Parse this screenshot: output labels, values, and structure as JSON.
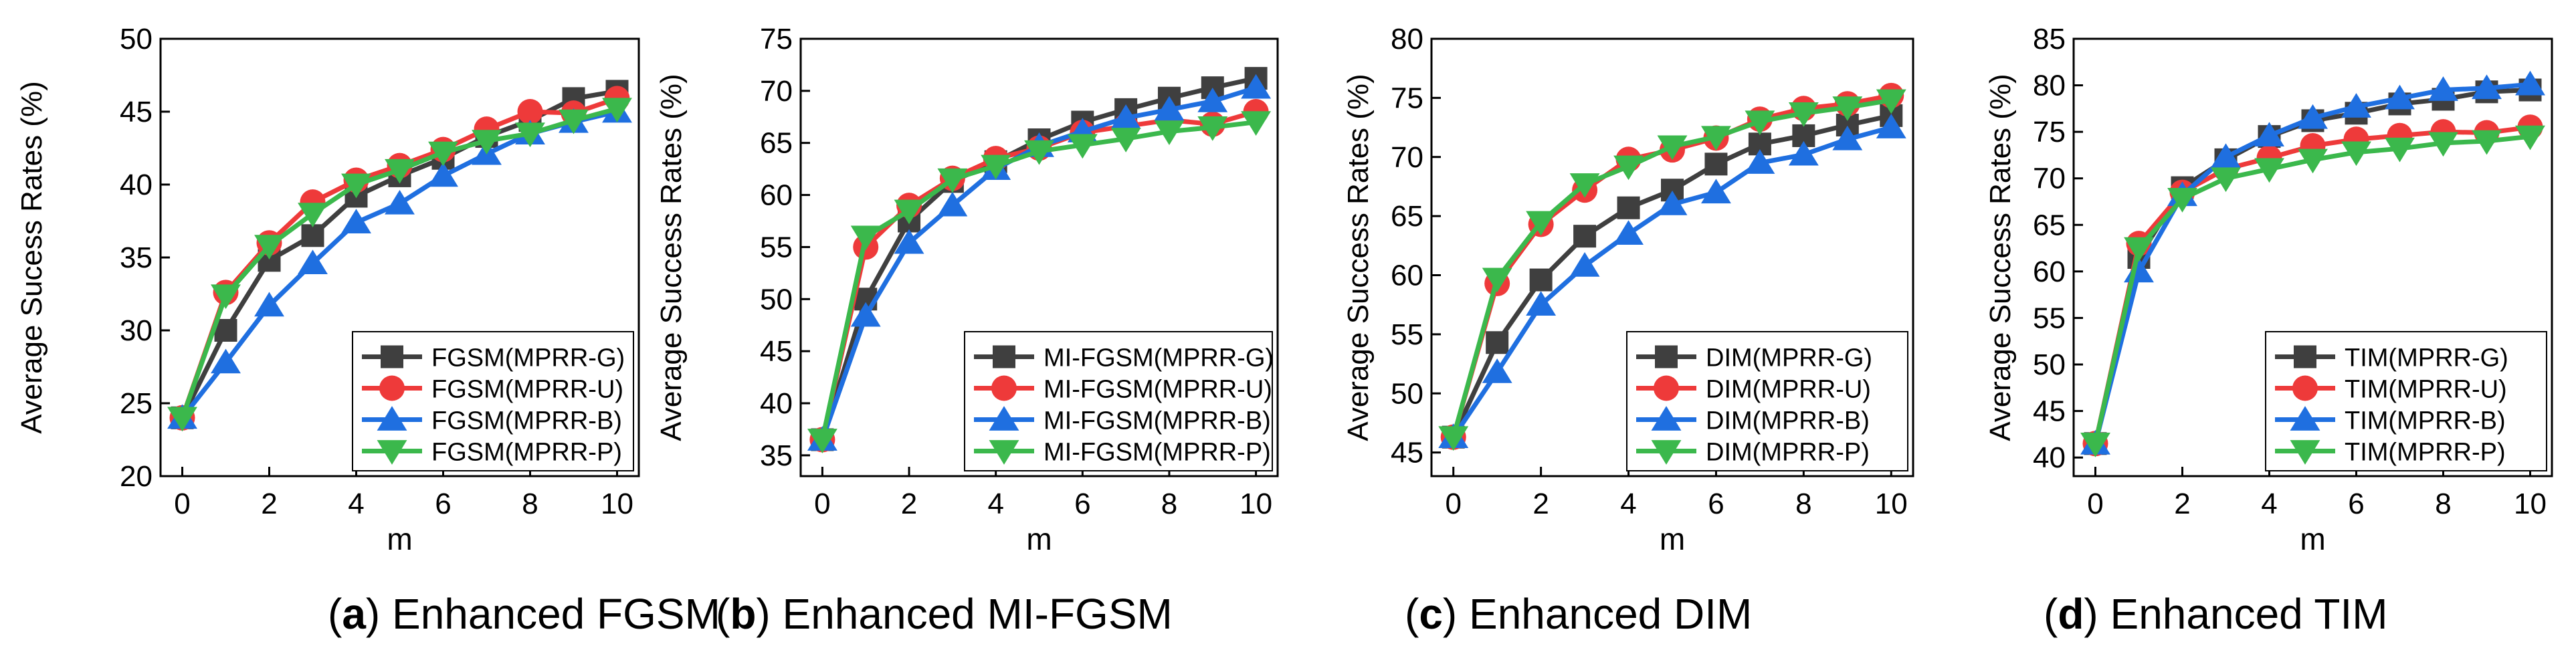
{
  "colors": {
    "G": "#3f3f3f",
    "U": "#ee3a3a",
    "B": "#1f6fe0",
    "P": "#3bb84c",
    "axis": "#000000",
    "background": "#ffffff"
  },
  "chart_data": [
    {
      "type": "line",
      "panel": "a",
      "caption_letter": "(a)",
      "caption_text": "Enhanced FGSM",
      "xlabel": "m",
      "ylabel": "Average Sucess Rates (%)",
      "xlim": [
        -0.5,
        10.5
      ],
      "ylim": [
        20,
        50
      ],
      "xticks": [
        0,
        2,
        4,
        6,
        8,
        10
      ],
      "yticks": [
        20,
        25,
        30,
        35,
        40,
        45,
        50
      ],
      "legend_position": "bottom-right",
      "x": [
        0,
        1,
        2,
        3,
        4,
        5,
        6,
        7,
        8,
        9,
        10
      ],
      "series": [
        {
          "key": "G",
          "name": "FGSM(MPRR-G)",
          "marker": "square",
          "values": [
            24.0,
            30.0,
            34.8,
            36.5,
            39.2,
            40.6,
            41.8,
            43.3,
            44.4,
            45.9,
            46.4
          ]
        },
        {
          "key": "U",
          "name": "FGSM(MPRR-U)",
          "marker": "circle",
          "values": [
            24.0,
            32.6,
            36.0,
            38.8,
            40.3,
            41.3,
            42.4,
            43.8,
            45.0,
            44.9,
            45.9
          ]
        },
        {
          "key": "B",
          "name": "FGSM(MPRR-B)",
          "marker": "triangle-up",
          "values": [
            24.0,
            27.8,
            31.7,
            34.6,
            37.4,
            38.7,
            40.6,
            42.1,
            43.5,
            44.3,
            45.0
          ]
        },
        {
          "key": "P",
          "name": "FGSM(MPRR-P)",
          "marker": "triangle-down",
          "values": [
            24.0,
            32.4,
            35.8,
            38.0,
            40.0,
            41.0,
            42.2,
            43.0,
            43.5,
            44.4,
            45.2
          ]
        }
      ]
    },
    {
      "type": "line",
      "panel": "b",
      "caption_letter": "(b)",
      "caption_text": "Enhanced MI-FGSM",
      "xlabel": "m",
      "ylabel": "Average Success Rates (%)",
      "xlim": [
        -0.5,
        10.5
      ],
      "ylim": [
        33,
        75
      ],
      "xticks": [
        0,
        2,
        4,
        6,
        8,
        10
      ],
      "yticks": [
        35,
        40,
        45,
        50,
        55,
        60,
        65,
        70,
        75
      ],
      "legend_position": "bottom-right",
      "x": [
        0,
        1,
        2,
        3,
        4,
        5,
        6,
        7,
        8,
        9,
        10
      ],
      "series": [
        {
          "key": "G",
          "name": "MI-FGSM(MPRR-G)",
          "marker": "square",
          "values": [
            36.5,
            50.0,
            57.5,
            61.3,
            63.2,
            65.3,
            67.0,
            68.2,
            69.3,
            70.3,
            71.2
          ]
        },
        {
          "key": "U",
          "name": "MI-FGSM(MPRR-U)",
          "marker": "circle",
          "values": [
            36.5,
            55.0,
            59.0,
            61.6,
            63.5,
            64.5,
            66.0,
            66.6,
            67.2,
            66.8,
            68.0
          ]
        },
        {
          "key": "B",
          "name": "MI-FGSM(MPRR-B)",
          "marker": "triangle-up",
          "values": [
            36.5,
            48.4,
            55.4,
            59.0,
            62.5,
            64.7,
            66.1,
            67.4,
            68.2,
            69.0,
            70.3
          ]
        },
        {
          "key": "P",
          "name": "MI-FGSM(MPRR-P)",
          "marker": "triangle-down",
          "values": [
            36.5,
            56.0,
            58.5,
            61.5,
            62.8,
            64.2,
            64.8,
            65.4,
            66.1,
            66.5,
            67.0
          ]
        }
      ]
    },
    {
      "type": "line",
      "panel": "c",
      "caption_letter": "(c)",
      "caption_text": "Enhanced DIM",
      "xlabel": "m",
      "ylabel": "Average Success Rates (%)",
      "xlim": [
        -0.5,
        10.5
      ],
      "ylim": [
        43,
        80
      ],
      "xticks": [
        0,
        2,
        4,
        6,
        8,
        10
      ],
      "yticks": [
        45,
        50,
        55,
        60,
        65,
        70,
        75,
        80
      ],
      "legend_position": "bottom-right",
      "x": [
        0,
        1,
        2,
        3,
        4,
        5,
        6,
        7,
        8,
        9,
        10
      ],
      "series": [
        {
          "key": "G",
          "name": "DIM(MPRR-G)",
          "marker": "square",
          "values": [
            46.3,
            54.3,
            59.6,
            63.3,
            65.7,
            67.2,
            69.4,
            71.1,
            71.8,
            72.7,
            73.5
          ]
        },
        {
          "key": "U",
          "name": "DIM(MPRR-U)",
          "marker": "circle",
          "values": [
            46.3,
            59.3,
            64.3,
            67.2,
            69.8,
            70.6,
            71.6,
            73.2,
            74.1,
            74.5,
            75.2
          ]
        },
        {
          "key": "B",
          "name": "DIM(MPRR-B)",
          "marker": "triangle-up",
          "values": [
            46.3,
            51.8,
            57.5,
            60.8,
            63.5,
            66.0,
            67.0,
            69.5,
            70.2,
            71.5,
            72.5
          ]
        },
        {
          "key": "P",
          "name": "DIM(MPRR-P)",
          "marker": "triangle-down",
          "values": [
            46.3,
            59.7,
            64.5,
            67.7,
            69.2,
            70.9,
            71.7,
            73.0,
            73.7,
            74.2,
            74.8
          ]
        }
      ]
    },
    {
      "type": "line",
      "panel": "d",
      "caption_letter": "(d)",
      "caption_text": "Enhanced TIM",
      "xlabel": "m",
      "ylabel": "Average Success Rates (%)",
      "xlim": [
        -0.5,
        10.5
      ],
      "ylim": [
        38,
        85
      ],
      "xticks": [
        0,
        2,
        4,
        6,
        8,
        10
      ],
      "yticks": [
        40,
        45,
        50,
        55,
        60,
        65,
        70,
        75,
        80,
        85
      ],
      "legend_position": "bottom-right",
      "x": [
        0,
        1,
        2,
        3,
        4,
        5,
        6,
        7,
        8,
        9,
        10
      ],
      "series": [
        {
          "key": "G",
          "name": "TIM(MPRR-G)",
          "marker": "square",
          "values": [
            41.5,
            61.5,
            69.0,
            72.0,
            74.5,
            76.2,
            77.0,
            78.0,
            78.5,
            79.3,
            79.5
          ]
        },
        {
          "key": "U",
          "name": "TIM(MPRR-U)",
          "marker": "circle",
          "values": [
            41.5,
            63.0,
            68.5,
            71.0,
            72.2,
            73.5,
            74.2,
            74.6,
            75.0,
            74.9,
            75.5
          ]
        },
        {
          "key": "B",
          "name": "TIM(MPRR-B)",
          "marker": "triangle-up",
          "values": [
            41.5,
            60.0,
            68.2,
            72.3,
            74.6,
            76.5,
            77.7,
            78.6,
            79.5,
            79.7,
            80.1
          ]
        },
        {
          "key": "P",
          "name": "TIM(MPRR-P)",
          "marker": "triangle-down",
          "values": [
            41.5,
            62.5,
            67.8,
            70.0,
            71.0,
            72.0,
            72.8,
            73.2,
            73.8,
            74.0,
            74.5
          ]
        }
      ]
    }
  ]
}
